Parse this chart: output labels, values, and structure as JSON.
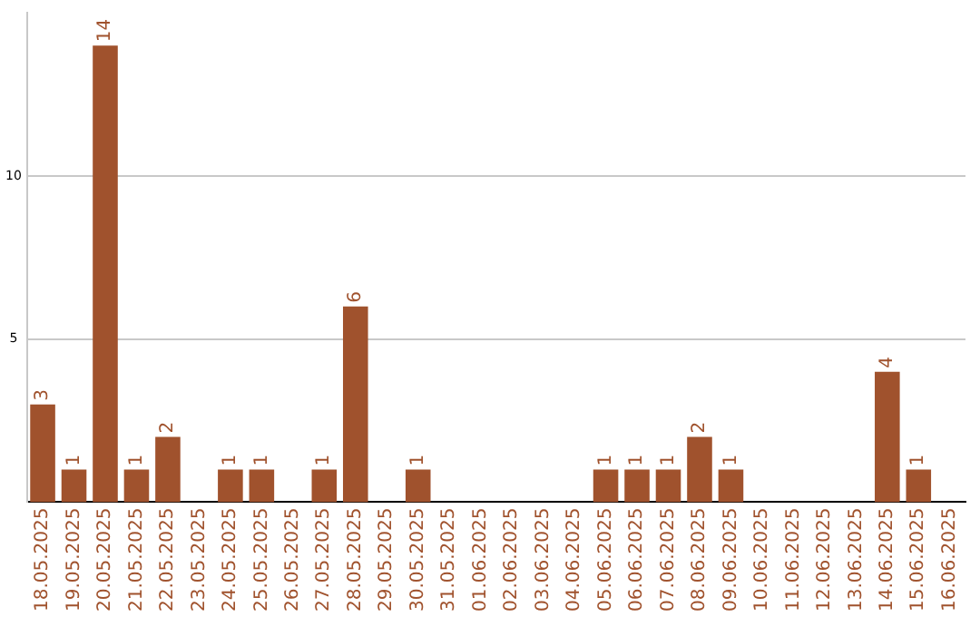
{
  "chart_data": {
    "type": "bar",
    "categories": [
      "18.05.2025",
      "19.05.2025",
      "20.05.2025",
      "21.05.2025",
      "22.05.2025",
      "23.05.2025",
      "24.05.2025",
      "25.05.2025",
      "26.05.2025",
      "27.05.2025",
      "28.05.2025",
      "29.05.2025",
      "30.05.2025",
      "31.05.2025",
      "01.06.2025",
      "02.06.2025",
      "03.06.2025",
      "04.06.2025",
      "05.06.2025",
      "06.06.2025",
      "07.06.2025",
      "08.06.2025",
      "09.06.2025",
      "10.06.2025",
      "11.06.2025",
      "12.06.2025",
      "13.06.2025",
      "14.06.2025",
      "15.06.2025",
      "16.06.2025"
    ],
    "values": [
      3,
      1,
      14,
      1,
      2,
      0,
      1,
      1,
      0,
      1,
      6,
      0,
      1,
      0,
      0,
      0,
      0,
      0,
      1,
      1,
      1,
      2,
      1,
      0,
      0,
      0,
      0,
      4,
      1,
      0
    ],
    "value_labels": [
      "3",
      "1",
      "14",
      "1",
      "2",
      null,
      "1",
      "1",
      null,
      "1",
      "6",
      null,
      "1",
      null,
      null,
      null,
      null,
      null,
      "1",
      "1",
      "1",
      "2",
      "1",
      null,
      null,
      null,
      null,
      "4",
      "1",
      null
    ],
    "color": "#a0522d",
    "ylim": [
      0,
      15
    ],
    "yticks": [
      5,
      10
    ],
    "grid": "y"
  }
}
